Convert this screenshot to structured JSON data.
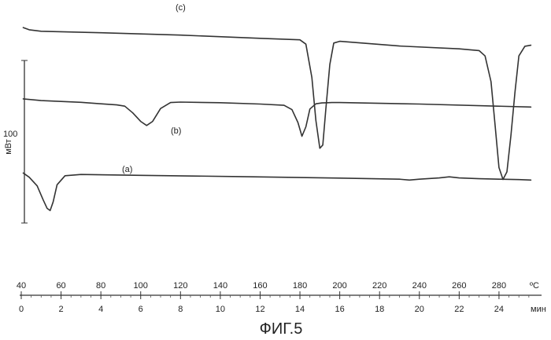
{
  "figure": {
    "caption": "ФИГ.5"
  },
  "chart_data": {
    "type": "line",
    "title": "",
    "xlabel": "",
    "ylabel": "",
    "scale_bar": {
      "value": "100",
      "unit": "мВт"
    },
    "x_axes": {
      "temperature": {
        "unit": "ºC",
        "min": 40,
        "max": 300,
        "ticks": [
          40,
          60,
          80,
          100,
          120,
          140,
          160,
          180,
          200,
          220,
          240,
          260,
          280
        ]
      },
      "time": {
        "unit": "мин",
        "min": 0,
        "max": 26,
        "ticks": [
          0,
          2,
          4,
          6,
          8,
          10,
          12,
          14,
          16,
          18,
          20,
          22,
          24
        ]
      }
    },
    "series": [
      {
        "name": "(a)",
        "x": [
          41,
          44,
          48,
          51,
          53,
          54.5,
          56,
          58,
          62,
          70,
          100,
          150,
          200,
          230,
          235,
          240,
          250,
          255,
          260,
          270,
          280,
          290,
          296
        ],
        "y": [
          -12.5,
          -14.5,
          -18.5,
          -25,
          -29,
          -30,
          -26,
          -18,
          -13.8,
          -13.2,
          -13.6,
          -14.2,
          -14.9,
          -15.4,
          -15.8,
          -15.4,
          -14.8,
          -14.3,
          -14.8,
          -15.2,
          -15.4,
          -15.6,
          -15.8
        ]
      },
      {
        "name": "(b)",
        "x": [
          41,
          50,
          70,
          80,
          88,
          92,
          96,
          100,
          103,
          106,
          110,
          115,
          120,
          140,
          160,
          172,
          176,
          179,
          181,
          183,
          185,
          188,
          191,
          194,
          196,
          200,
          240,
          296
        ],
        "y": [
          22,
          21.2,
          20.4,
          19.7,
          19.2,
          18.6,
          15.5,
          11.5,
          9.6,
          11.5,
          17.5,
          20.3,
          20.5,
          20.2,
          19.6,
          19,
          17,
          11,
          4.6,
          9,
          17.3,
          19.7,
          20.1,
          20.2,
          20.3,
          20.3,
          19.6,
          18.2
        ]
      },
      {
        "name": "(c)",
        "x": [
          41,
          44,
          50,
          80,
          120,
          160,
          180,
          183,
          186,
          188,
          190,
          191.5,
          193,
          195,
          197,
          200,
          230,
          260,
          270,
          273,
          276,
          278,
          280,
          282,
          284,
          286,
          288,
          290,
          293,
          296
        ],
        "y": [
          55.2,
          54.2,
          53.5,
          52.8,
          51.7,
          50.2,
          49.5,
          47.5,
          32,
          12,
          -1,
          0.5,
          17,
          38,
          48,
          48.8,
          46.6,
          45.3,
          44.5,
          42,
          30,
          10,
          -10,
          -15.5,
          -12,
          5,
          25,
          42,
          46.5,
          47
        ]
      }
    ],
    "curve_labels": [
      {
        "text": "(c)",
        "series": "(c)"
      },
      {
        "text": "(b)",
        "series": "(b)"
      },
      {
        "text": "(a)",
        "series": "(a)"
      }
    ],
    "y_scale": {
      "min": -38,
      "max": 60
    },
    "grid": false,
    "legend": "none",
    "line_color": "#333333"
  }
}
